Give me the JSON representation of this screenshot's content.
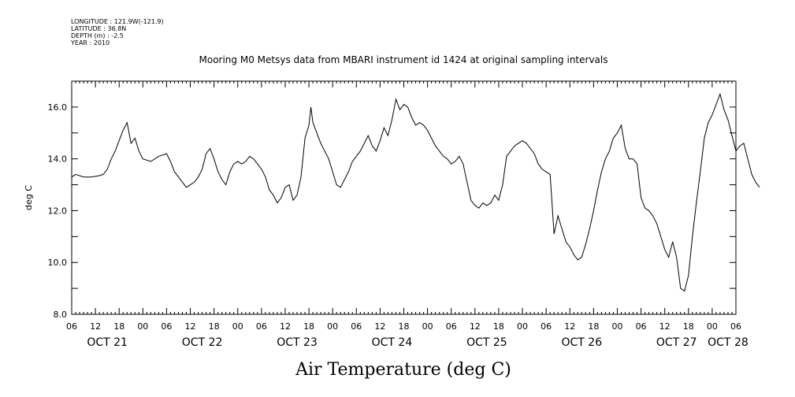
{
  "metadata": {
    "longitude": "LONGITUDE : 121.9W(-121.9)",
    "latitude": "LATITUDE : 36.8N",
    "depth": "DEPTH (m) : -2.5",
    "year": "YEAR : 2010"
  },
  "chart_data": {
    "type": "line",
    "title": "Mooring M0 Metsys data from MBARI instrument id 1424 at original sampling intervals",
    "xlabel": "Air Temperature (deg C)",
    "ylabel": "deg C",
    "ylim": [
      8.0,
      17.0
    ],
    "yticks": [
      8,
      10,
      12,
      14,
      16
    ],
    "ytick_labels": [
      "8.0",
      "10.0",
      "12.0",
      "14.0",
      "16.0"
    ],
    "xlim_hours": [
      0,
      168
    ],
    "hour_labels": [
      "06",
      "12",
      "18",
      "00",
      "06",
      "12",
      "18",
      "00",
      "06",
      "12",
      "18",
      "00",
      "06",
      "12",
      "18",
      "00",
      "06",
      "12",
      "18",
      "00",
      "06",
      "12",
      "18",
      "00",
      "06",
      "12",
      "18",
      "00",
      "06"
    ],
    "day_labels": [
      {
        "label": "OCT 21",
        "hour": 9
      },
      {
        "label": "OCT 22",
        "hour": 33
      },
      {
        "label": "OCT 23",
        "hour": 57
      },
      {
        "label": "OCT 24",
        "hour": 81
      },
      {
        "label": "OCT 25",
        "hour": 105
      },
      {
        "label": "OCT 26",
        "hour": 129
      },
      {
        "label": "OCT 27",
        "hour": 153
      },
      {
        "label": "OCT 28",
        "hour": 166
      }
    ],
    "grid": false,
    "series": [
      {
        "color": "#000000",
        "points": [
          [
            0,
            13.3
          ],
          [
            1,
            13.4
          ],
          [
            3,
            13.3
          ],
          [
            5,
            13.3
          ],
          [
            7,
            13.35
          ],
          [
            8,
            13.4
          ],
          [
            9,
            13.6
          ],
          [
            10,
            14.0
          ],
          [
            11,
            14.3
          ],
          [
            12,
            14.7
          ],
          [
            13,
            15.1
          ],
          [
            14,
            15.4
          ],
          [
            15,
            14.6
          ],
          [
            16,
            14.8
          ],
          [
            17,
            14.3
          ],
          [
            18,
            14.0
          ],
          [
            20,
            13.9
          ],
          [
            22,
            14.1
          ],
          [
            24,
            14.2
          ],
          [
            25,
            13.9
          ],
          [
            26,
            13.5
          ],
          [
            27,
            13.3
          ],
          [
            28,
            13.1
          ],
          [
            29,
            12.9
          ],
          [
            30,
            13.0
          ],
          [
            31,
            13.1
          ],
          [
            32,
            13.3
          ],
          [
            33,
            13.6
          ],
          [
            34,
            14.2
          ],
          [
            35,
            14.4
          ],
          [
            36,
            14.0
          ],
          [
            37,
            13.5
          ],
          [
            38,
            13.2
          ],
          [
            39,
            13.0
          ],
          [
            40,
            13.5
          ],
          [
            41,
            13.8
          ],
          [
            42,
            13.9
          ],
          [
            43,
            13.8
          ],
          [
            44,
            13.9
          ],
          [
            45,
            14.1
          ],
          [
            46,
            14.0
          ],
          [
            47,
            13.8
          ],
          [
            48,
            13.6
          ],
          [
            49,
            13.3
          ],
          [
            50,
            12.8
          ],
          [
            51,
            12.6
          ],
          [
            52,
            12.3
          ],
          [
            53,
            12.5
          ],
          [
            54,
            12.9
          ],
          [
            55,
            13.0
          ],
          [
            56,
            12.4
          ],
          [
            57,
            12.6
          ],
          [
            58,
            13.3
          ],
          [
            59,
            14.8
          ],
          [
            60,
            15.3
          ],
          [
            60.5,
            16.0
          ],
          [
            61,
            15.4
          ],
          [
            62,
            15.0
          ],
          [
            63,
            14.6
          ],
          [
            64,
            14.3
          ],
          [
            65,
            14.0
          ],
          [
            66,
            13.5
          ],
          [
            67,
            13.0
          ],
          [
            68,
            12.9
          ],
          [
            69,
            13.2
          ],
          [
            70,
            13.5
          ],
          [
            71,
            13.9
          ],
          [
            72,
            14.1
          ],
          [
            73,
            14.3
          ],
          [
            74,
            14.6
          ],
          [
            75,
            14.9
          ],
          [
            76,
            14.5
          ],
          [
            77,
            14.3
          ],
          [
            78,
            14.7
          ],
          [
            79,
            15.2
          ],
          [
            80,
            14.9
          ],
          [
            81,
            15.5
          ],
          [
            82,
            16.3
          ],
          [
            83,
            15.9
          ],
          [
            84,
            16.1
          ],
          [
            85,
            16.0
          ],
          [
            86,
            15.6
          ],
          [
            87,
            15.3
          ],
          [
            88,
            15.4
          ],
          [
            89,
            15.3
          ],
          [
            90,
            15.1
          ],
          [
            91,
            14.8
          ],
          [
            92,
            14.5
          ],
          [
            93,
            14.3
          ],
          [
            94,
            14.1
          ],
          [
            95,
            14.0
          ],
          [
            96,
            13.8
          ],
          [
            97,
            13.9
          ],
          [
            98,
            14.1
          ],
          [
            99,
            13.8
          ],
          [
            100,
            13.1
          ],
          [
            101,
            12.4
          ],
          [
            102,
            12.2
          ],
          [
            103,
            12.1
          ],
          [
            104,
            12.3
          ],
          [
            105,
            12.2
          ],
          [
            106,
            12.3
          ],
          [
            107,
            12.6
          ],
          [
            108,
            12.4
          ],
          [
            109,
            13.0
          ],
          [
            110,
            14.1
          ],
          [
            111,
            14.3
          ],
          [
            112,
            14.5
          ],
          [
            113,
            14.6
          ],
          [
            114,
            14.7
          ],
          [
            115,
            14.6
          ],
          [
            116,
            14.4
          ],
          [
            117,
            14.2
          ],
          [
            118,
            13.8
          ],
          [
            119,
            13.6
          ],
          [
            120,
            13.5
          ],
          [
            121,
            13.4
          ],
          [
            122,
            11.1
          ],
          [
            123,
            11.8
          ],
          [
            124,
            11.3
          ],
          [
            125,
            10.8
          ],
          [
            126,
            10.6
          ],
          [
            127,
            10.3
          ],
          [
            128,
            10.1
          ],
          [
            129,
            10.2
          ],
          [
            130,
            10.7
          ],
          [
            131,
            11.3
          ],
          [
            132,
            12.0
          ],
          [
            133,
            12.8
          ],
          [
            134,
            13.5
          ],
          [
            135,
            14.0
          ],
          [
            136,
            14.3
          ],
          [
            137,
            14.8
          ],
          [
            138,
            15.0
          ],
          [
            139,
            15.3
          ],
          [
            140,
            14.4
          ],
          [
            141,
            14.0
          ],
          [
            142,
            14.0
          ],
          [
            143,
            13.8
          ],
          [
            144,
            12.5
          ],
          [
            145,
            12.1
          ],
          [
            146,
            12.0
          ],
          [
            147,
            11.8
          ],
          [
            148,
            11.5
          ],
          [
            149,
            11.0
          ],
          [
            150,
            10.5
          ],
          [
            151,
            10.2
          ],
          [
            152,
            10.8
          ],
          [
            153,
            10.2
          ],
          [
            154,
            9.0
          ],
          [
            155,
            8.9
          ],
          [
            156,
            9.5
          ],
          [
            157,
            11.0
          ],
          [
            158,
            12.3
          ],
          [
            159,
            13.5
          ],
          [
            160,
            14.8
          ],
          [
            161,
            15.4
          ],
          [
            162,
            15.7
          ],
          [
            163,
            16.1
          ],
          [
            164,
            16.5
          ],
          [
            165,
            15.9
          ],
          [
            166,
            15.5
          ],
          [
            167,
            14.9
          ],
          [
            168,
            14.3
          ],
          [
            169,
            14.5
          ],
          [
            170,
            14.6
          ],
          [
            171,
            14.0
          ],
          [
            172,
            13.4
          ],
          [
            173,
            13.1
          ],
          [
            174,
            12.9
          ]
        ]
      }
    ]
  }
}
